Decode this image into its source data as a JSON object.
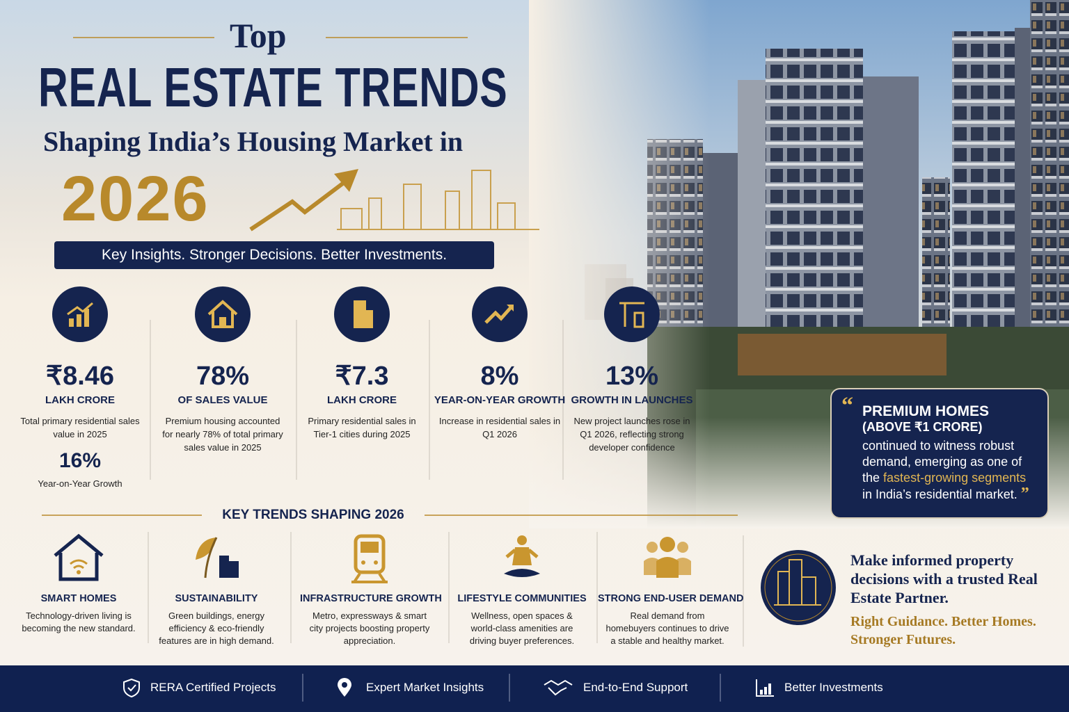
{
  "header": {
    "top": "Top",
    "title": "REAL ESTATE TRENDS",
    "subtitle": "Shaping India’s Housing Market in",
    "year": "2026",
    "tagline": "Key Insights. Stronger Decisions. Better Investments."
  },
  "stats": [
    {
      "value": "₹8.46",
      "label": "LAKH CRORE",
      "desc": "Total primary residential sales value in 2025",
      "value2": "16%",
      "desc2": "Year-on-Year Growth"
    },
    {
      "value": "78%",
      "label": "OF SALES VALUE",
      "desc": "Premium housing accounted for nearly 78% of total primary sales value in 2025"
    },
    {
      "value": "₹7.3",
      "label": "LAKH CRORE",
      "desc": "Primary residential sales in Tier-1 cities during 2025"
    },
    {
      "value": "8%",
      "label": "YEAR-ON-YEAR GROWTH",
      "desc": "Increase in residential sales in Q1 2026"
    },
    {
      "value": "13%",
      "label": "GROWTH IN LAUNCHES",
      "desc": "New project launches rose in Q1 2026, reflecting strong developer confidence"
    }
  ],
  "quote": {
    "open": "“",
    "heading": "PREMIUM HOMES",
    "subheading": "(ABOVE ₹1 CRORE)",
    "text": "continued to witness robust demand, emerging as one of the",
    "highlight": "fastest-growing segments",
    "end": "in India’s residential market.",
    "close": "”"
  },
  "trends": {
    "heading": "KEY TRENDS SHAPING 2026",
    "items": [
      {
        "title": "SMART HOMES",
        "desc": "Technology-driven living is becoming the new standard."
      },
      {
        "title": "SUSTAINABILITY",
        "desc": "Green buildings, energy efficiency & eco-friendly features are in high demand."
      },
      {
        "title": "INFRASTRUCTURE GROWTH",
        "desc": "Metro, expressways & smart city projects boosting property appreciation."
      },
      {
        "title": "LIFESTYLE COMMUNITIES",
        "desc": "Wellness, open spaces & world-class amenities are driving buyer preferences."
      },
      {
        "title": "STRONG END-USER DEMAND",
        "desc": "Real demand from homebuyers continues to drive a stable and healthy market."
      }
    ]
  },
  "cta": {
    "text": "Make informed property decisions with a trusted Real Estate Partner.",
    "tagline": "Right Guidance. Better Homes. Stronger Futures."
  },
  "footer": {
    "items": [
      "RERA Certified Projects",
      "Expert Market Insights",
      "End-to-End Support",
      "Better Investments"
    ]
  }
}
